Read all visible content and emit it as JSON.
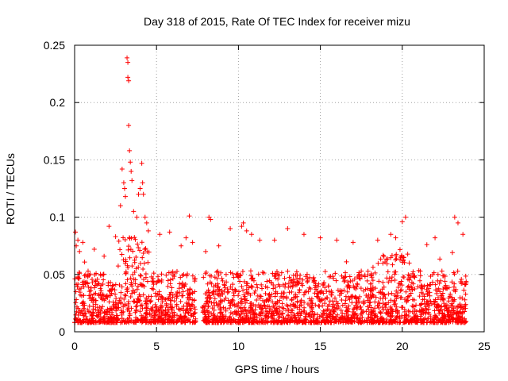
{
  "chart_data": {
    "type": "scatter",
    "title": "Day 318 of 2015, Rate Of TEC Index for receiver mizu",
    "xlabel": "GPS time / hours",
    "ylabel": "ROTI / TECUs",
    "xlim": [
      0,
      25
    ],
    "ylim": [
      0,
      0.25
    ],
    "xticks": [
      0,
      5,
      10,
      15,
      20,
      25
    ],
    "yticks": [
      0,
      0.05,
      0.1,
      0.15,
      0.2,
      0.25
    ],
    "xtick_labels": [
      "0",
      "5",
      "10",
      "15",
      "20",
      "25"
    ],
    "ytick_labels": [
      "0",
      "0.05",
      "0.1",
      "0.15",
      "0.2",
      "0.25"
    ],
    "grid": true,
    "marker": "+",
    "color": "#ff0000",
    "data_gap_hours": [
      7.4,
      7.8
    ],
    "data_end_hours": 23.9,
    "series": [
      {
        "values": [
          [
            0.05,
            0.087
          ],
          [
            0.1,
            0.075
          ],
          [
            0.2,
            0.08
          ],
          [
            0.3,
            0.07
          ],
          [
            0.5,
            0.078
          ],
          [
            1.2,
            0.072
          ],
          [
            1.8,
            0.066
          ],
          [
            2.1,
            0.092
          ],
          [
            2.5,
            0.083
          ],
          [
            2.7,
            0.079
          ],
          [
            2.8,
            0.11
          ],
          [
            2.9,
            0.142
          ],
          [
            3.0,
            0.13
          ],
          [
            3.05,
            0.125
          ],
          [
            3.1,
            0.118
          ],
          [
            3.2,
            0.239
          ],
          [
            3.25,
            0.235
          ],
          [
            3.25,
            0.222
          ],
          [
            3.3,
            0.219
          ],
          [
            3.3,
            0.18
          ],
          [
            3.35,
            0.158
          ],
          [
            3.4,
            0.148
          ],
          [
            3.45,
            0.14
          ],
          [
            3.5,
            0.132
          ],
          [
            3.6,
            0.105
          ],
          [
            3.8,
            0.1
          ],
          [
            3.9,
            0.12
          ],
          [
            4.0,
            0.125
          ],
          [
            4.1,
            0.147
          ],
          [
            4.15,
            0.13
          ],
          [
            4.2,
            0.12
          ],
          [
            4.3,
            0.1
          ],
          [
            4.4,
            0.095
          ],
          [
            4.5,
            0.088
          ],
          [
            5.2,
            0.085
          ],
          [
            5.8,
            0.087
          ],
          [
            6.5,
            0.075
          ],
          [
            6.8,
            0.082
          ],
          [
            7.0,
            0.101
          ],
          [
            7.2,
            0.078
          ],
          [
            8.0,
            0.07
          ],
          [
            8.2,
            0.1
          ],
          [
            8.3,
            0.098
          ],
          [
            8.8,
            0.075
          ],
          [
            9.5,
            0.09
          ],
          [
            10.2,
            0.092
          ],
          [
            10.3,
            0.095
          ],
          [
            10.5,
            0.088
          ],
          [
            10.8,
            0.085
          ],
          [
            11.3,
            0.08
          ],
          [
            12.2,
            0.08
          ],
          [
            13.0,
            0.09
          ],
          [
            14.0,
            0.085
          ],
          [
            15.0,
            0.082
          ],
          [
            16.0,
            0.08
          ],
          [
            17.0,
            0.078
          ],
          [
            18.5,
            0.08
          ],
          [
            19.3,
            0.085
          ],
          [
            19.6,
            0.082
          ],
          [
            20.0,
            0.096
          ],
          [
            20.2,
            0.1
          ],
          [
            21.5,
            0.076
          ],
          [
            22.0,
            0.082
          ],
          [
            23.2,
            0.1
          ],
          [
            23.4,
            0.095
          ],
          [
            23.7,
            0.085
          ]
        ]
      }
    ]
  }
}
